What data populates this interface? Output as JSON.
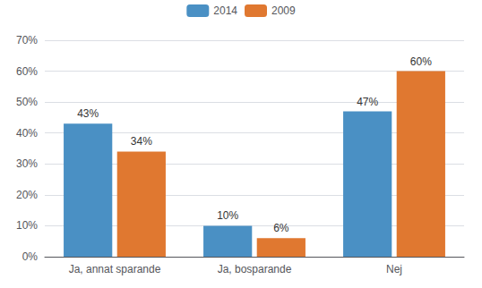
{
  "chart_data": {
    "type": "bar",
    "categories": [
      "Ja, annat sparande",
      "Ja, bosparande",
      "Nej"
    ],
    "series": [
      {
        "name": "2014",
        "color": "#4A90C4",
        "values": [
          43,
          10,
          47
        ],
        "value_labels": [
          "43%",
          "10%",
          "47%"
        ]
      },
      {
        "name": "2009",
        "color": "#E07830",
        "values": [
          34,
          6,
          60
        ],
        "value_labels": [
          "34%",
          "6%",
          "60%"
        ]
      }
    ],
    "ylim": [
      0,
      70
    ],
    "yticks": [
      {
        "value": 0,
        "label": "0%"
      },
      {
        "value": 10,
        "label": "10%"
      },
      {
        "value": 20,
        "label": "20%"
      },
      {
        "value": 30,
        "label": "30%"
      },
      {
        "value": 40,
        "label": "40%"
      },
      {
        "value": 50,
        "label": "50%"
      },
      {
        "value": 60,
        "label": "60%"
      },
      {
        "value": 70,
        "label": "70%"
      }
    ],
    "grid": true,
    "legend": "top",
    "data_labels": true
  }
}
